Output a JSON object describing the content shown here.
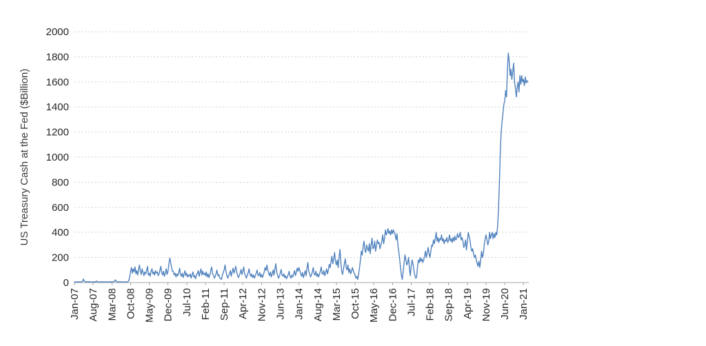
{
  "chart_data": {
    "type": "line",
    "title": "",
    "xlabel": "",
    "ylabel": "US Treasury Cash at the Fed ($Billion)",
    "ylim": [
      0,
      2000
    ],
    "y_ticks": [
      0,
      200,
      400,
      600,
      800,
      1000,
      1200,
      1400,
      1600,
      1800,
      2000
    ],
    "x_tick_labels": [
      "Jan-07",
      "Aug-07",
      "Mar-08",
      "Oct-08",
      "May-09",
      "Dec-09",
      "Jul-10",
      "Feb-11",
      "Sep-11",
      "Apr-12",
      "Nov-12",
      "Jun-13",
      "Jan-14",
      "Aug-14",
      "Mar-15",
      "Oct-15",
      "May-16",
      "Dec-16",
      "Jul-17",
      "Feb-18",
      "Sep-18",
      "Apr-19",
      "Nov-19",
      "Jun-20",
      "Jan-21"
    ],
    "x_tick_interval_months": 7,
    "x_start_label": "Jan-07",
    "months_span": 170,
    "points_per_month": 3,
    "grid": true,
    "legend": "none",
    "line_color": "#4F81BD",
    "grid_color": "#cfcfcf",
    "axis_color": "#a6a6a6",
    "label_color": "#262626",
    "values": [
      5,
      6,
      5,
      4,
      7,
      5,
      5,
      4,
      6,
      8,
      28,
      12,
      6,
      5,
      7,
      5,
      8,
      5,
      4,
      6,
      5,
      5,
      5,
      7,
      6,
      12,
      6,
      5,
      4,
      6,
      5,
      7,
      5,
      4,
      6,
      5,
      5,
      6,
      4,
      5,
      7,
      5,
      6,
      5,
      8,
      10,
      22,
      9,
      6,
      5,
      6,
      5,
      7,
      5,
      4,
      6,
      5,
      5,
      6,
      5,
      7,
      15,
      45,
      90,
      120,
      75,
      110,
      85,
      125,
      70,
      95,
      60,
      105,
      140,
      90,
      65,
      110,
      80,
      55,
      85,
      70,
      95,
      130,
      60,
      75,
      50,
      90,
      110,
      70,
      85,
      60,
      95,
      75,
      85,
      55,
      70,
      100,
      130,
      80,
      60,
      90,
      50,
      75,
      110,
      65,
      90,
      150,
      195,
      160,
      120,
      90,
      90,
      60,
      75,
      45,
      70,
      55,
      80,
      115,
      65,
      50,
      75,
      40,
      65,
      95,
      55,
      75,
      45,
      60,
      50,
      70,
      35,
      60,
      85,
      45,
      55,
      30,
      65,
      70,
      95,
      50,
      80,
      110,
      60,
      90,
      65,
      75,
      55,
      85,
      45,
      70,
      40,
      60,
      95,
      125,
      70,
      60,
      35,
      50,
      75,
      100,
      55,
      65,
      40,
      30,
      25,
      60,
      80,
      100,
      140,
      90,
      60,
      35,
      55,
      70,
      95,
      50,
      85,
      115,
      75,
      100,
      130,
      85,
      60,
      40,
      55,
      75,
      105,
      65,
      90,
      125,
      70,
      55,
      35,
      60,
      80,
      110,
      65,
      50,
      70,
      40,
      60,
      35,
      55,
      75,
      100,
      60,
      55,
      80,
      45,
      65,
      40,
      60,
      85,
      120,
      95,
      140,
      100,
      75,
      55,
      85,
      45,
      70,
      100,
      60,
      110,
      150,
      85,
      60,
      35,
      50,
      75,
      105,
      60,
      50,
      70,
      40,
      55,
      30,
      45,
      65,
      90,
      50,
      35,
      60,
      45,
      70,
      95,
      55,
      80,
      115,
      90,
      120,
      95,
      70,
      50,
      80,
      40,
      65,
      95,
      55,
      115,
      160,
      90,
      70,
      45,
      60,
      85,
      120,
      70,
      60,
      90,
      50,
      70,
      45,
      65,
      90,
      125,
      75,
      65,
      95,
      55,
      80,
      110,
      70,
      100,
      145,
      120,
      165,
      210,
      150,
      190,
      240,
      170,
      140,
      180,
      120,
      200,
      265,
      160,
      90,
      65,
      110,
      150,
      190,
      120,
      100,
      140,
      80,
      110,
      70,
      90,
      120,
      95,
      75,
      60,
      35,
      50,
      25,
      70,
      120,
      180,
      250,
      220,
      290,
      330,
      260,
      240,
      300,
      270,
      250,
      310,
      230,
      300,
      355,
      270,
      280,
      330,
      250,
      290,
      340,
      310,
      320,
      270,
      300,
      330,
      380,
      310,
      350,
      420,
      380,
      400,
      430,
      390,
      410,
      380,
      420,
      390,
      420,
      400,
      380,
      340,
      390,
      300,
      250,
      190,
      120,
      60,
      25,
      90,
      160,
      220,
      180,
      140,
      160,
      200,
      110,
      55,
      130,
      180,
      150,
      100,
      60,
      35,
      40,
      120,
      180,
      160,
      200,
      170,
      190,
      160,
      180,
      210,
      250,
      200,
      240,
      280,
      230,
      200,
      250,
      300,
      290,
      340,
      310,
      350,
      400,
      330,
      360,
      320,
      350,
      340,
      380,
      330,
      350,
      310,
      340,
      330,
      360,
      320,
      340,
      380,
      330,
      350,
      320,
      360,
      330,
      370,
      340,
      350,
      390,
      360,
      370,
      400,
      340,
      360,
      330,
      280,
      300,
      340,
      260,
      320,
      400,
      370,
      340,
      280,
      250,
      270,
      230,
      200,
      220,
      180,
      150,
      130,
      170,
      120,
      180,
      250,
      200,
      230,
      300,
      350,
      380,
      340,
      300,
      330,
      400,
      350,
      380,
      400,
      350,
      390,
      360,
      400,
      380,
      450,
      600,
      800,
      1050,
      1200,
      1280,
      1350,
      1420,
      1450,
      1530,
      1480,
      1700,
      1830,
      1760,
      1650,
      1700,
      1620,
      1680,
      1750,
      1600,
      1550,
      1480,
      1560,
      1600,
      1520,
      1650,
      1580,
      1650,
      1600,
      1620,
      1570,
      1640,
      1590,
      1610,
      1600
    ]
  }
}
